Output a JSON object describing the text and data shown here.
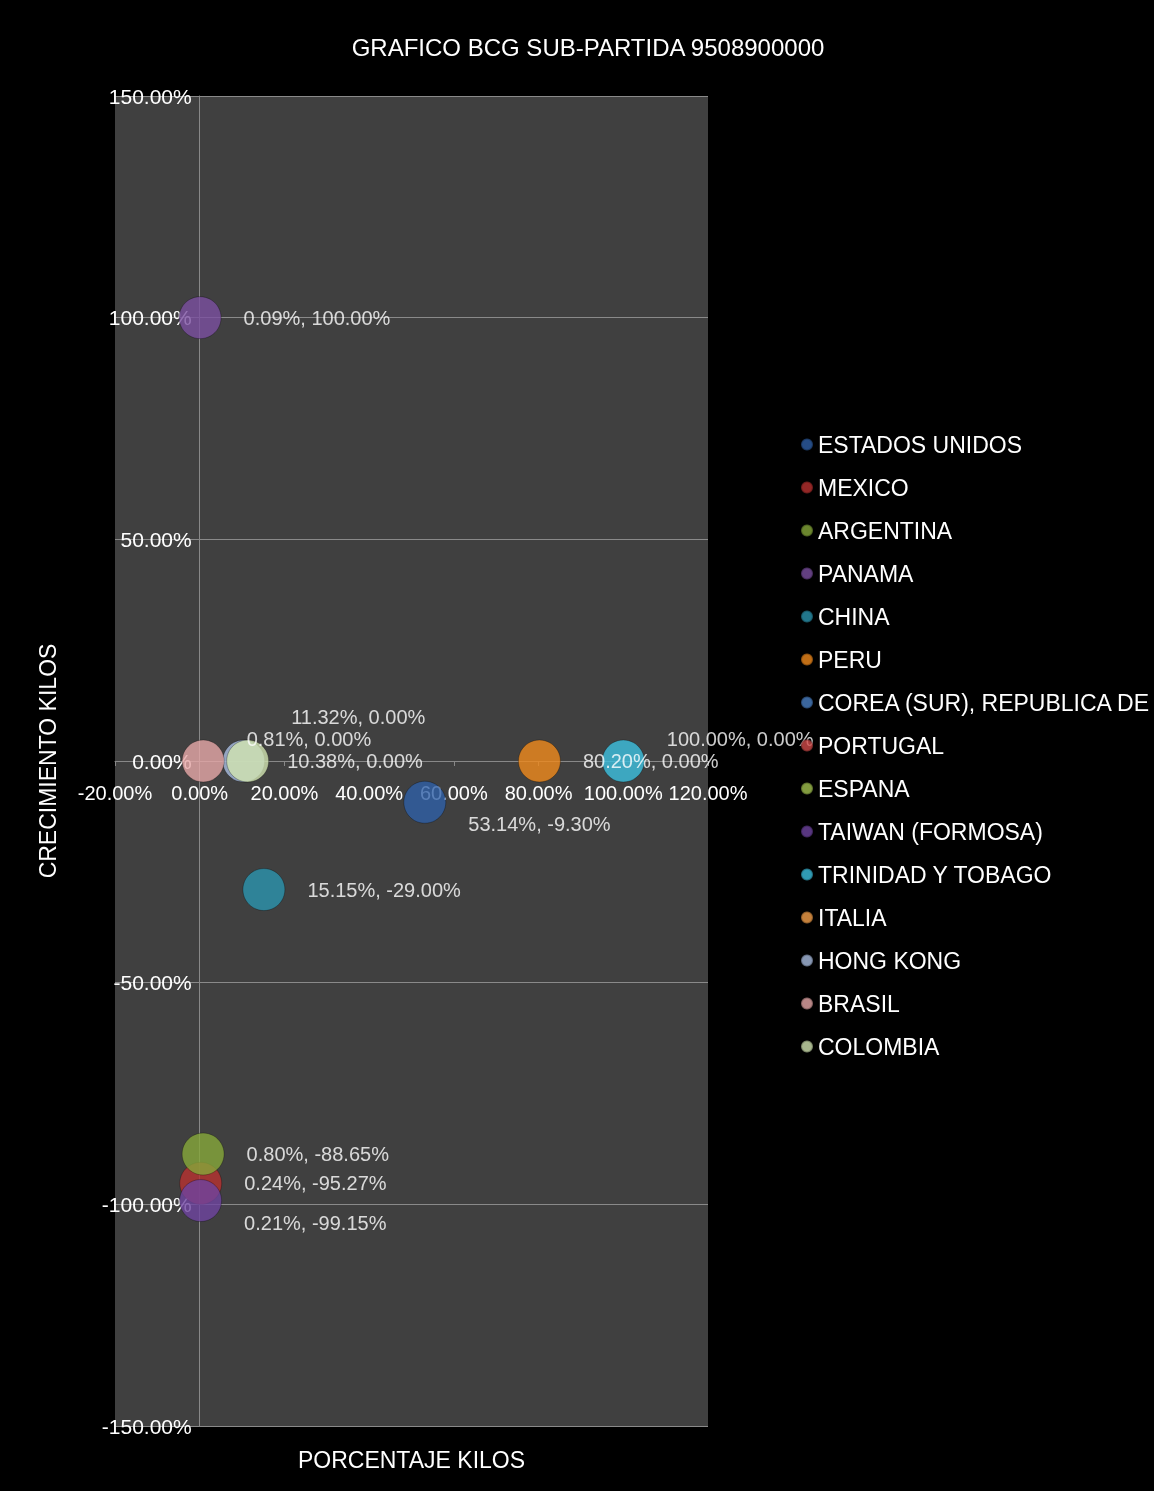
{
  "chart_data": {
    "type": "bubble",
    "title": "GRAFICO BCG SUB-PARTIDA 9508900000",
    "xlabel": "PORCENTAJE KILOS",
    "ylabel": "CRECIMIENTO KILOS",
    "xlim": [
      -20,
      120
    ],
    "xticks": [
      {
        "value": -20,
        "label": "-20.00%"
      },
      {
        "value": 0,
        "label": "0.00%"
      },
      {
        "value": 20,
        "label": "20.00%"
      },
      {
        "value": 40,
        "label": "40.00%"
      },
      {
        "value": 60,
        "label": "60.00%"
      },
      {
        "value": 80,
        "label": "80.00%"
      },
      {
        "value": 100,
        "label": "100.00%"
      },
      {
        "value": 120,
        "label": "120.00%"
      }
    ],
    "ylim": [
      -150,
      150
    ],
    "yticks": [
      {
        "value": -150,
        "label": "-150.00%"
      },
      {
        "value": -100,
        "label": "-100.00%"
      },
      {
        "value": -50,
        "label": "-50.00%"
      },
      {
        "value": 0,
        "label": "0.00%"
      },
      {
        "value": 50,
        "label": "50.00%"
      },
      {
        "value": 100,
        "label": "100.00%"
      },
      {
        "value": 150,
        "label": "150.00%"
      }
    ],
    "grid": "y",
    "legend": "right",
    "marker": "circle",
    "series": [
      {
        "name": "ESTADOS UNIDOS",
        "color": "#2e5fa6",
        "x": [
          53.14
        ],
        "values": [
          -9.3
        ],
        "sizes": [
          1
        ],
        "value_labels": [
          "53.14%, -9.30%"
        ]
      },
      {
        "name": "MEXICO",
        "color": "#b8312f",
        "x": [
          0.24
        ],
        "values": [
          -95.27
        ],
        "sizes": [
          1
        ],
        "value_labels": [
          "0.24%, -95.27%"
        ]
      },
      {
        "name": "ARGENTINA",
        "color": "#86a83a",
        "x": [
          0.8
        ],
        "values": [
          -88.65
        ],
        "sizes": [
          1
        ],
        "value_labels": [
          "0.80%, -88.65%"
        ]
      },
      {
        "name": "PANAMA",
        "color": "#7a4fa0",
        "x": [
          0.09
        ],
        "values": [
          100
        ],
        "sizes": [
          1
        ],
        "value_labels": [
          "0.09%, 100.00%"
        ]
      },
      {
        "name": "CHINA",
        "color": "#2a93ae",
        "x": [
          15.15
        ],
        "values": [
          -29
        ],
        "sizes": [
          1
        ],
        "value_labels": [
          "15.15%, -29.00%"
        ]
      },
      {
        "name": "PERU",
        "color": "#f08a1c",
        "x": [
          80.2
        ],
        "values": [
          0
        ],
        "sizes": [
          1
        ],
        "value_labels": [
          "80.20%, 0.00%"
        ]
      },
      {
        "name": "COREA (SUR), REPUBLICA DE",
        "color": "#4a7fc4",
        "x": [
          null
        ],
        "values": [
          null
        ],
        "sizes": [
          null
        ]
      },
      {
        "name": "PORTUGAL",
        "color": "#d04a48",
        "x": [
          null
        ],
        "values": [
          null
        ],
        "sizes": [
          null
        ]
      },
      {
        "name": "ESPANA",
        "color": "#a3c24f",
        "x": [
          null
        ],
        "values": [
          null
        ],
        "sizes": [
          null
        ]
      },
      {
        "name": "TAIWAN (FORMOSA)",
        "color": "#6e43a0",
        "x": [
          0.21
        ],
        "values": [
          -99.15
        ],
        "sizes": [
          1
        ],
        "value_labels": [
          "0.21%, -99.15%"
        ]
      },
      {
        "name": "TRINIDAD Y TOBAGO",
        "color": "#3cc0e0",
        "x": [
          100
        ],
        "values": [
          0
        ],
        "sizes": [
          1
        ],
        "value_labels": [
          "100.00%, 0.00%"
        ]
      },
      {
        "name": "ITALIA",
        "color": "#f5a04a",
        "x": [
          null
        ],
        "values": [
          null
        ],
        "sizes": [
          null
        ]
      },
      {
        "name": "HONG KONG",
        "color": "#a9bde0",
        "x": [
          10.38
        ],
        "values": [
          0
        ],
        "sizes": [
          1
        ],
        "value_labels": [
          "10.38%, 0.00%"
        ]
      },
      {
        "name": "BRASIL",
        "color": "#e6a8a8",
        "x": [
          0.81
        ],
        "values": [
          0
        ],
        "sizes": [
          1
        ],
        "value_labels": [
          "0.81%, 0.00%"
        ]
      },
      {
        "name": "COLOMBIA",
        "color": "#d1e3b0",
        "x": [
          11.32
        ],
        "values": [
          0
        ],
        "sizes": [
          1
        ],
        "value_labels": [
          "11.32%, 0.00%"
        ]
      }
    ]
  }
}
